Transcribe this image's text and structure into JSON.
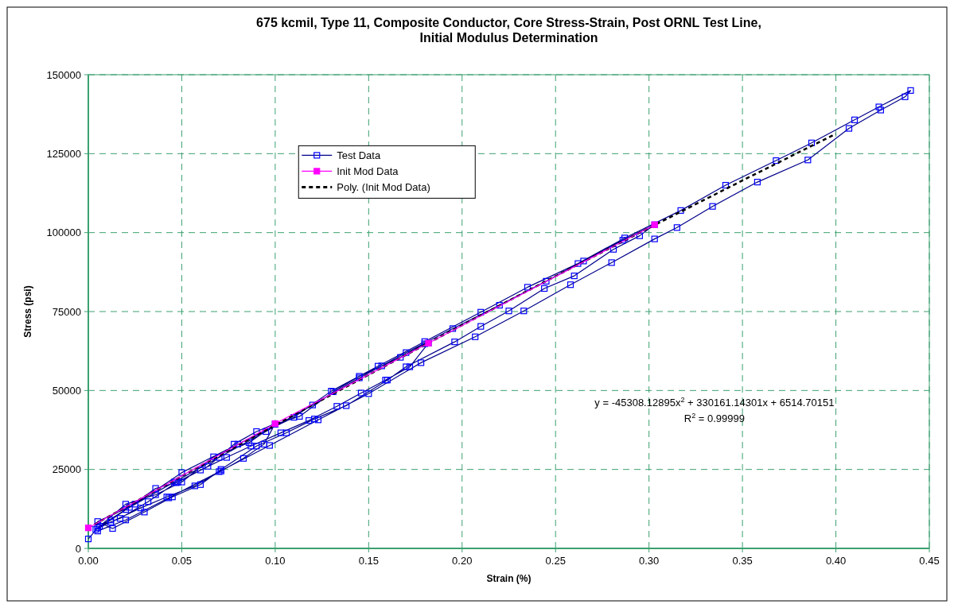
{
  "chart_data": {
    "type": "line",
    "title": "675 kcmil, Type 11, Composite Conductor, Core Stress-Strain, Post ORNL Test Line,\nInitial Modulus Determination",
    "xlabel": "Strain (%)",
    "ylabel": "Stress (psi)",
    "xlim": [
      0,
      0.45
    ],
    "xticks": [
      {
        "value": 0,
        "label": "0.00"
      },
      {
        "value": 0.05,
        "label": "0.05"
      },
      {
        "value": 0.1,
        "label": "0.10"
      },
      {
        "value": 0.15,
        "label": "0.15"
      },
      {
        "value": 0.2,
        "label": "0.20"
      },
      {
        "value": 0.25,
        "label": "0.25"
      },
      {
        "value": 0.3,
        "label": "0.30"
      },
      {
        "value": 0.35,
        "label": "0.35"
      },
      {
        "value": 0.4,
        "label": "0.40"
      },
      {
        "value": 0.45,
        "label": "0.45"
      }
    ],
    "ylim": [
      0,
      150000
    ],
    "yticks": [
      0,
      25000,
      50000,
      75000,
      100000,
      125000,
      150000
    ],
    "grid": true,
    "legend": "top left",
    "annotations": [
      "y = -45308.12895x$^{2}$ + 330161.14301x + 6514.70151",
      "R$^{2}$ = 0.99999"
    ],
    "series": [
      {
        "name": "Test Data",
        "color": "#00008b",
        "marker": "square",
        "x": [
          0,
          0.005,
          0.012,
          0.022,
          0.036,
          0.048,
          0.064,
          0.078,
          0.09,
          0.1,
          0.094,
          0.083,
          0.071,
          0.057,
          0.042,
          0.028,
          0.012,
          0.004,
          0.02,
          0.036,
          0.05,
          0.067,
          0.086,
          0.1,
          0.113,
          0.131,
          0.145,
          0.157,
          0.167,
          0.18,
          0.182,
          0.172,
          0.159,
          0.146,
          0.133,
          0.118,
          0.103,
          0.087,
          0.074,
          0.06,
          0.047,
          0.032,
          0.017,
          0.006,
          0.02,
          0.046,
          0.07,
          0.095,
          0.12,
          0.145,
          0.17,
          0.195,
          0.22,
          0.245,
          0.265,
          0.286,
          0.303,
          0.295,
          0.281,
          0.26,
          0.244,
          0.225,
          0.21,
          0.196,
          0.17,
          0.16,
          0.138,
          0.121,
          0.106,
          0.09,
          0.071,
          0.06,
          0.045,
          0.03,
          0.013,
          0.005,
          0.025,
          0.05,
          0.08,
          0.11,
          0.13,
          0.155,
          0.18,
          0.21,
          0.235,
          0.262,
          0.287,
          0.317,
          0.341,
          0.368,
          0.387,
          0.41,
          0.423,
          0.44,
          0.437,
          0.424,
          0.407,
          0.385,
          0.358,
          0.334,
          0.315,
          0.303,
          0.28,
          0.258,
          0.233,
          0.207,
          0.178,
          0.15,
          0.123,
          0.097,
          0.07,
          0.043,
          0.02,
          0.005
        ],
        "values": [
          3000,
          6500,
          9000,
          13000,
          19000,
          21000,
          26000,
          33000,
          37000,
          39500,
          33000,
          28500,
          24500,
          19800,
          16300,
          12800,
          8300,
          6000,
          14000,
          17000,
          21000,
          29000,
          33500,
          39300,
          41800,
          49600,
          54500,
          57800,
          60500,
          64800,
          65000,
          57500,
          53300,
          49200,
          45000,
          40500,
          36600,
          32400,
          28800,
          24800,
          20800,
          14800,
          9500,
          7000,
          12300,
          21000,
          28800,
          37000,
          45400,
          54000,
          62000,
          69600,
          77000,
          84600,
          91000,
          97600,
          102500,
          99000,
          94700,
          86300,
          82300,
          75200,
          70300,
          65400,
          57500,
          53300,
          45200,
          41000,
          36600,
          32400,
          25000,
          20200,
          16300,
          11500,
          6300,
          8500,
          14000,
          24000,
          33000,
          41500,
          49800,
          57700,
          65500,
          74800,
          82700,
          90200,
          98300,
          107000,
          115000,
          122800,
          128400,
          135700,
          139800,
          145000,
          143000,
          138800,
          133000,
          123000,
          116000,
          108300,
          101600,
          98000,
          90500,
          83500,
          75200,
          67000,
          58800,
          49000,
          40700,
          32600,
          24300,
          16000,
          9000,
          5500
        ]
      },
      {
        "name": "Init Mod Data",
        "color": "#ff00ff",
        "marker": "square",
        "x": [
          0,
          0.1,
          0.182,
          0.303
        ],
        "values": [
          6500,
          39500,
          65000,
          102500
        ]
      },
      {
        "name": "Poly. (Init Mod Data)",
        "color": "#000000",
        "marker": "none",
        "line_style": "dashed",
        "x": [
          0,
          0.05,
          0.1,
          0.15,
          0.2,
          0.25,
          0.3,
          0.35,
          0.4
        ],
        "values": [
          6500,
          22900,
          39100,
          55000,
          70700,
          86200,
          101500,
          116500,
          131300
        ]
      }
    ]
  }
}
